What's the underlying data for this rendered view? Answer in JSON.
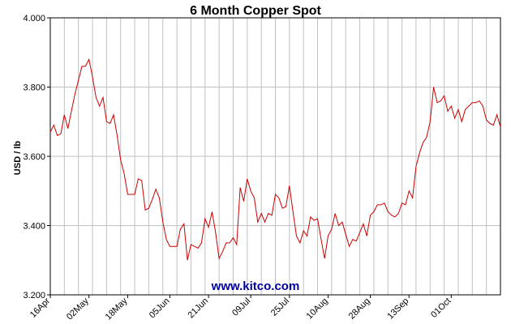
{
  "chart_data": {
    "type": "line",
    "title": "6 Month Copper Spot",
    "ylabel": "USD / lb",
    "xlabel": "",
    "ylim": [
      3.2,
      4.0
    ],
    "yticks": [
      "3.200",
      "3.400",
      "3.600",
      "3.800",
      "4.000"
    ],
    "ytick_values": [
      3.2,
      3.4,
      3.6,
      3.8,
      4.0
    ],
    "xtick_labels": [
      "16Apr",
      "02May",
      "18May",
      "05Jun",
      "21Jun",
      "09Jul",
      "25Jul",
      "10Aug",
      "28Aug",
      "13Sep",
      "01Oct"
    ],
    "xtick_index": [
      0,
      11,
      22,
      34,
      45,
      57,
      68,
      79,
      91,
      102,
      114
    ],
    "grid": true,
    "series": [
      {
        "color": "#cc0000",
        "values": [
          3.67,
          3.69,
          3.66,
          3.665,
          3.72,
          3.68,
          3.73,
          3.78,
          3.82,
          3.86,
          3.86,
          3.88,
          3.83,
          3.77,
          3.745,
          3.77,
          3.7,
          3.695,
          3.72,
          3.66,
          3.59,
          3.55,
          3.49,
          3.49,
          3.49,
          3.535,
          3.53,
          3.445,
          3.45,
          3.475,
          3.505,
          3.48,
          3.41,
          3.36,
          3.34,
          3.34,
          3.34,
          3.39,
          3.405,
          3.3,
          3.345,
          3.34,
          3.335,
          3.35,
          3.42,
          3.395,
          3.44,
          3.38,
          3.305,
          3.325,
          3.35,
          3.35,
          3.365,
          3.345,
          3.51,
          3.47,
          3.535,
          3.5,
          3.48,
          3.41,
          3.435,
          3.41,
          3.435,
          3.43,
          3.49,
          3.48,
          3.45,
          3.455,
          3.515,
          3.44,
          3.37,
          3.35,
          3.385,
          3.37,
          3.425,
          3.415,
          3.42,
          3.36,
          3.305,
          3.37,
          3.39,
          3.435,
          3.4,
          3.41,
          3.375,
          3.34,
          3.36,
          3.355,
          3.38,
          3.405,
          3.37,
          3.43,
          3.44,
          3.46,
          3.46,
          3.465,
          3.44,
          3.43,
          3.425,
          3.435,
          3.465,
          3.46,
          3.5,
          3.48,
          3.57,
          3.61,
          3.64,
          3.655,
          3.7,
          3.8,
          3.755,
          3.76,
          3.775,
          3.73,
          3.745,
          3.71,
          3.735,
          3.7,
          3.735,
          3.745,
          3.755,
          3.755,
          3.76,
          3.745,
          3.705,
          3.695,
          3.69,
          3.72,
          3.685
        ]
      }
    ]
  },
  "watermark": "www.kitco.com",
  "colors": {
    "line": "#cc0000",
    "grid": "#c0c0c0",
    "axis": "#000000",
    "watermark": "#0000a0"
  }
}
